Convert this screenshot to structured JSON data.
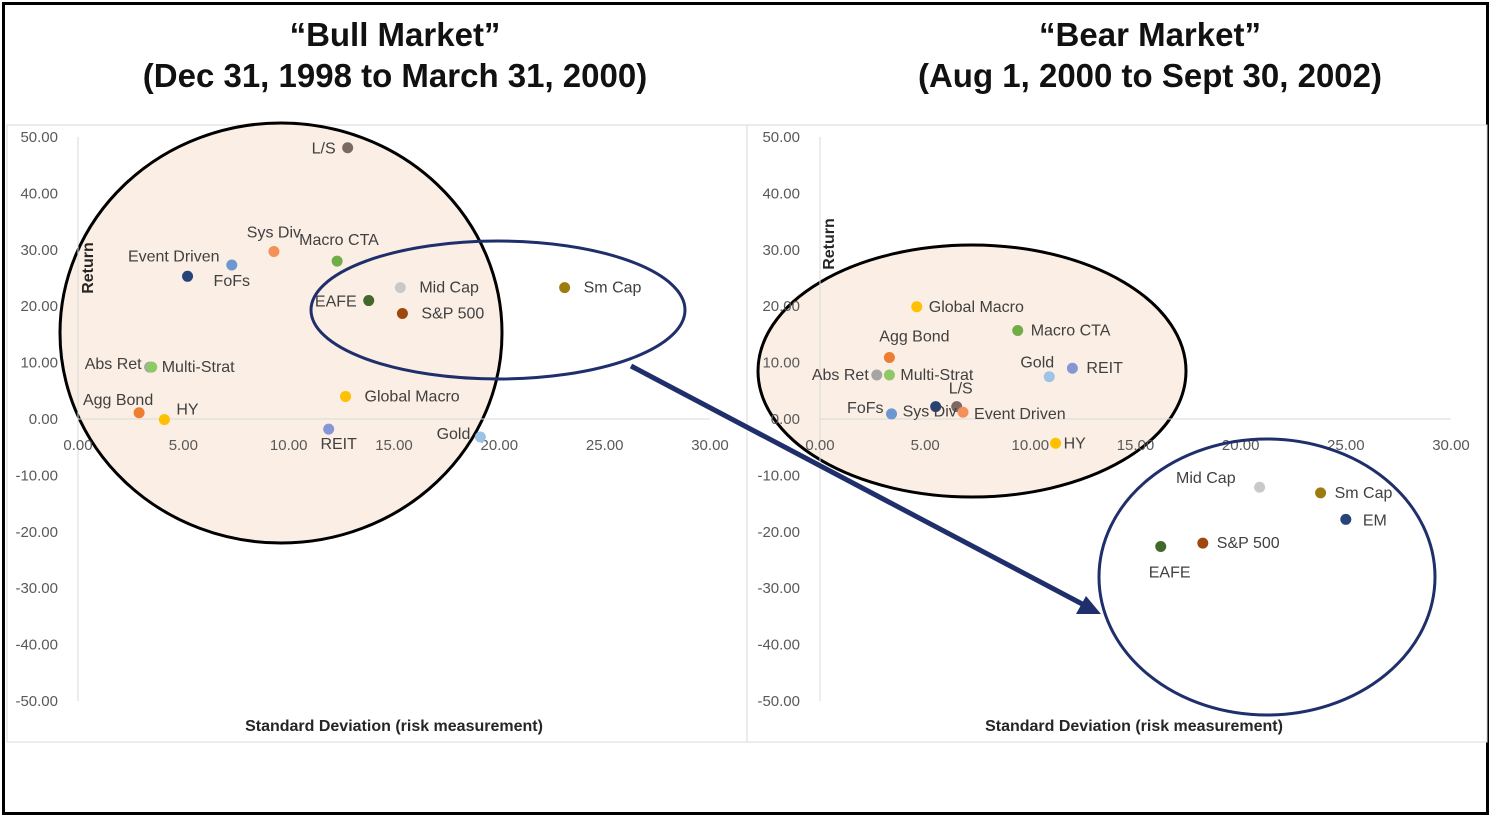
{
  "chart_data": [
    {
      "type": "scatter",
      "title": "“Bull Market”",
      "subtitle": "(Dec 31, 1998 to March 31, 2000)",
      "xlabel": "Standard Deviation (risk measurement)",
      "ylabel": "Return",
      "xlim": [
        0,
        30
      ],
      "ylim": [
        -50,
        50
      ],
      "x_ticks": [
        "0.00",
        "5.00",
        "10.00",
        "15.00",
        "20.00",
        "25.00",
        "30.00"
      ],
      "y_ticks": [
        "50.00",
        "40.00",
        "30.00",
        "20.00",
        "10.00",
        "0.00",
        "-10.00",
        "-20.00",
        "-30.00",
        "-40.00",
        "-50.00"
      ],
      "grid": false,
      "points": [
        {
          "label": "L/S",
          "x": 12.8,
          "y": 48.1,
          "color": "#7a6a63"
        },
        {
          "label": "Sys Div",
          "x": 9.3,
          "y": 29.7,
          "color": "#f4915a"
        },
        {
          "label": "Macro CTA",
          "x": 12.3,
          "y": 28.0,
          "color": "#70ad47"
        },
        {
          "label": "Event Driven",
          "x": 5.2,
          "y": 25.3,
          "color": "#264478"
        },
        {
          "label": "FoFs",
          "x": 7.3,
          "y": 27.3,
          "color": "#6d97d0"
        },
        {
          "label": "Mid Cap",
          "x": 15.3,
          "y": 23.3,
          "color": "#c9c9c9"
        },
        {
          "label": "Sm Cap",
          "x": 23.1,
          "y": 23.3,
          "color": "#9e7b0f"
        },
        {
          "label": "EAFE",
          "x": 13.8,
          "y": 21.0,
          "color": "#43682b"
        },
        {
          "label": "S&P 500",
          "x": 15.4,
          "y": 18.7,
          "color": "#9e480e"
        },
        {
          "label": "Abs Ret",
          "x": 3.4,
          "y": 9.2,
          "color": "#a5a5a5"
        },
        {
          "label": "Multi-Strat",
          "x": 3.5,
          "y": 9.2,
          "color": "#8fc866"
        },
        {
          "label": "Agg Bond",
          "x": 2.9,
          "y": 1.1,
          "color": "#ed7d31"
        },
        {
          "label": "HY",
          "x": 4.1,
          "y": -0.1,
          "color": "#ffc000"
        },
        {
          "label": "Global Macro",
          "x": 12.7,
          "y": 4.0,
          "color": "#ffc000"
        },
        {
          "label": "REIT",
          "x": 11.9,
          "y": -1.8,
          "color": "#8496d6"
        },
        {
          "label": "Gold",
          "x": 19.1,
          "y": -3.2,
          "color": "#9dc3e6"
        }
      ]
    },
    {
      "type": "scatter",
      "title": "“Bear Market”",
      "subtitle": "(Aug 1, 2000 to Sept 30, 2002)",
      "xlabel": "Standard Deviation (risk measurement)",
      "ylabel": "Return",
      "xlim": [
        0,
        30
      ],
      "ylim": [
        -50,
        50
      ],
      "x_ticks": [
        "0.00",
        "5.00",
        "10.00",
        "15.00",
        "20.00",
        "25.00",
        "30.00"
      ],
      "y_ticks": [
        "50.00",
        "40.00",
        "30.00",
        "20.00",
        "10.00",
        "0.00",
        "-10.00",
        "-20.00",
        "-30.00",
        "-40.00",
        "-50.00"
      ],
      "grid": false,
      "points": [
        {
          "label": "Global Macro",
          "x": 4.6,
          "y": 19.9,
          "color": "#ffc000"
        },
        {
          "label": "Macro CTA",
          "x": 9.4,
          "y": 15.7,
          "color": "#70ad47"
        },
        {
          "label": "Agg Bond",
          "x": 3.3,
          "y": 10.9,
          "color": "#ed7d31"
        },
        {
          "label": "Gold",
          "x": 10.9,
          "y": 7.5,
          "color": "#9dc3e6"
        },
        {
          "label": "REIT",
          "x": 12.0,
          "y": 9.0,
          "color": "#8496d6"
        },
        {
          "label": "Abs Ret",
          "x": 2.7,
          "y": 7.8,
          "color": "#a5a5a5"
        },
        {
          "label": "Multi-Strat",
          "x": 3.3,
          "y": 7.8,
          "color": "#8fc866"
        },
        {
          "label": "L/S",
          "x": 6.5,
          "y": 2.2,
          "color": "#7a6a63"
        },
        {
          "label": "FoFs",
          "x": 3.4,
          "y": 0.9,
          "color": "#6d97d0"
        },
        {
          "label": "Sys Div",
          "x": 5.5,
          "y": 2.2,
          "color": "#264478"
        },
        {
          "label": "Event Driven",
          "x": 6.8,
          "y": 1.2,
          "color": "#f4915a"
        },
        {
          "label": "HY",
          "x": 11.2,
          "y": -4.3,
          "color": "#ffc000"
        },
        {
          "label": "Mid Cap",
          "x": 20.9,
          "y": -12.1,
          "color": "#c9c9c9"
        },
        {
          "label": "Sm Cap",
          "x": 23.8,
          "y": -13.1,
          "color": "#9e7b0f"
        },
        {
          "label": "EM",
          "x": 25.0,
          "y": -17.8,
          "color": "#264478"
        },
        {
          "label": "EAFE",
          "x": 16.2,
          "y": -22.6,
          "color": "#43682b"
        },
        {
          "label": "S&P 500",
          "x": 18.2,
          "y": -22.0,
          "color": "#9e480e"
        }
      ]
    }
  ],
  "colors": {
    "bubble_fill": "#fbeee4",
    "bubble_stroke": "#000000",
    "highlight_stroke": "#1f2f6b",
    "arrow": "#1f2f6b"
  }
}
